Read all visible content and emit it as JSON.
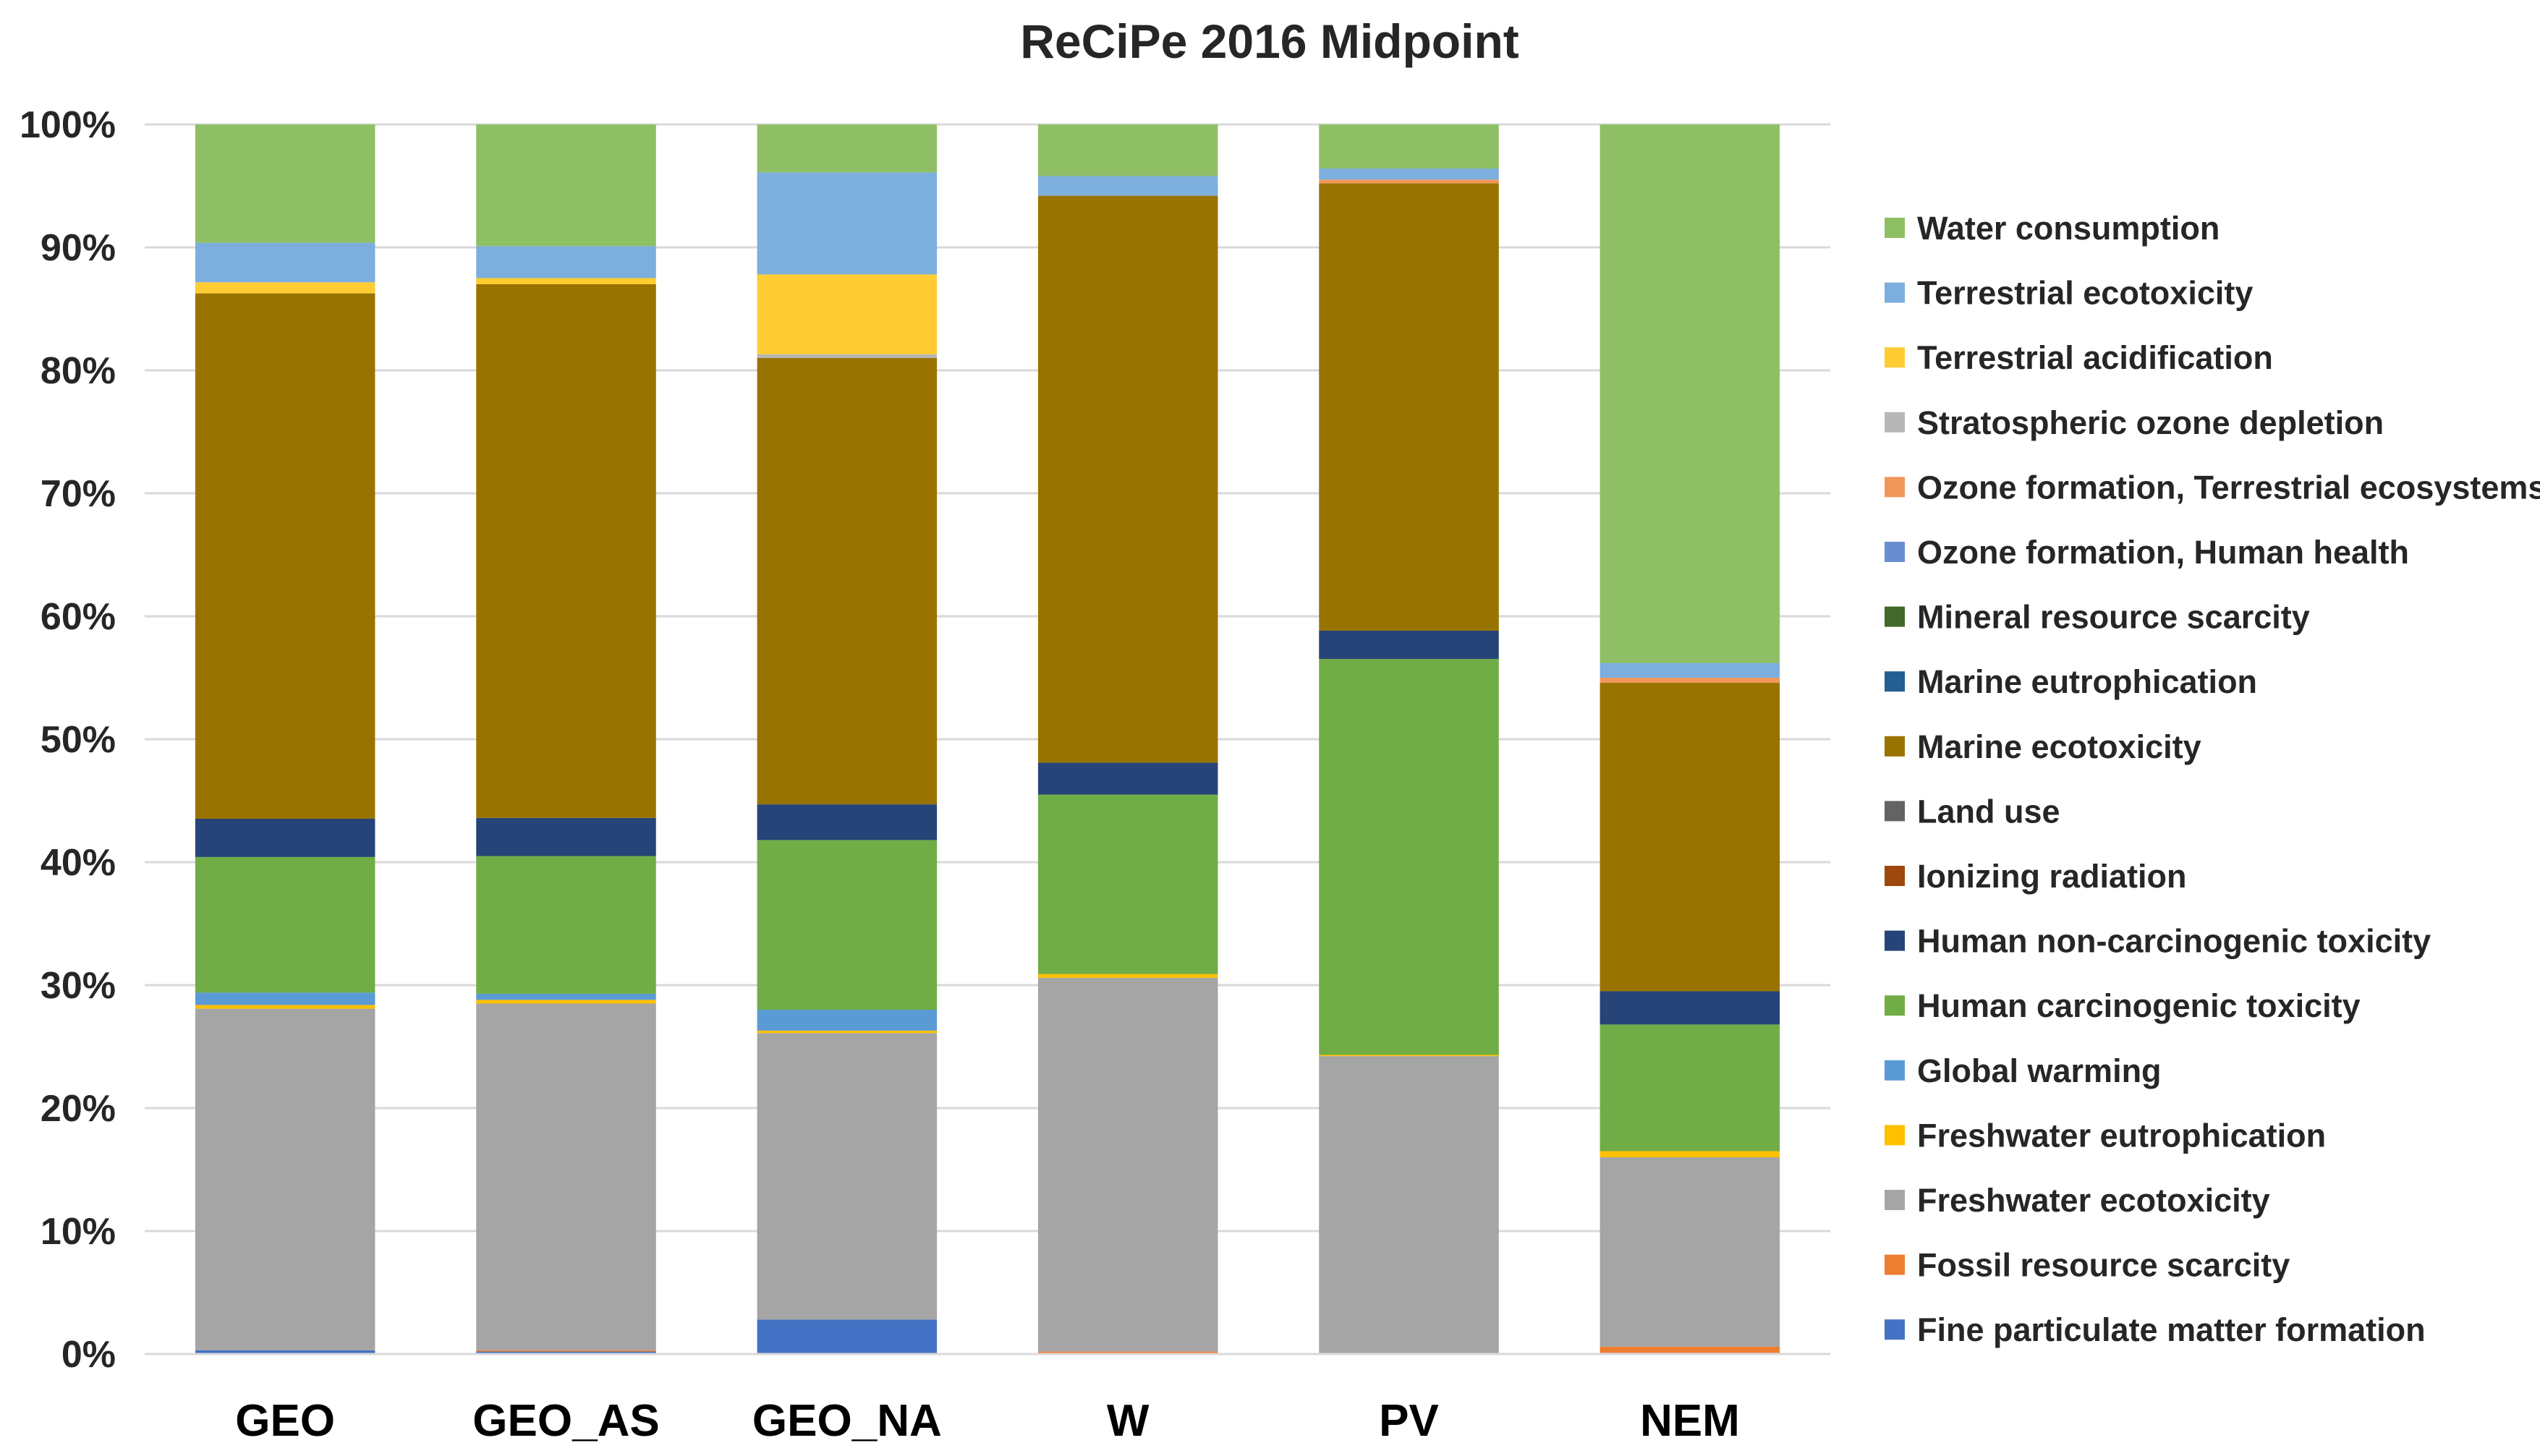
{
  "chart_data": {
    "type": "bar",
    "stacked": "percent",
    "title": "ReCiPe 2016 Midpoint",
    "xlabel": "",
    "ylabel": "",
    "ylim": [
      0,
      100
    ],
    "y_ticks": [
      "0%",
      "10%",
      "20%",
      "30%",
      "40%",
      "50%",
      "60%",
      "70%",
      "80%",
      "90%",
      "100%"
    ],
    "grid": true,
    "legend_position": "right",
    "categories": [
      "GEO",
      "GEO_AS",
      "GEO_NA",
      "W",
      "PV",
      "NEM"
    ],
    "series": [
      {
        "name": "Fine particulate matter formation",
        "color": "#4472C4",
        "values": [
          0.3,
          0.2,
          2.8,
          0.0,
          0.0,
          0.1
        ]
      },
      {
        "name": "Fossil resource scarcity",
        "color": "#ED7D31",
        "values": [
          0.0,
          0.1,
          0.0,
          0.2,
          0.0,
          0.5
        ]
      },
      {
        "name": "Freshwater ecotoxicity",
        "color": "#A5A5A5",
        "values": [
          27.7,
          28.2,
          23.3,
          30.4,
          24.3,
          15.4
        ]
      },
      {
        "name": "Freshwater eutrophication",
        "color": "#FFC000",
        "values": [
          0.3,
          0.3,
          0.2,
          0.3,
          0.1,
          0.5
        ]
      },
      {
        "name": "Global warming",
        "color": "#5B9BD5",
        "values": [
          1.0,
          0.5,
          1.7,
          0.0,
          0.0,
          0.0
        ]
      },
      {
        "name": "Human carcinogenic toxicity",
        "color": "#70AD47",
        "values": [
          11.0,
          11.2,
          13.8,
          14.6,
          32.3,
          10.3
        ]
      },
      {
        "name": "Human non-carcinogenic toxicity",
        "color": "#264478",
        "values": [
          3.1,
          3.1,
          2.9,
          2.6,
          2.3,
          2.7
        ]
      },
      {
        "name": "Ionizing radiation",
        "color": "#9E480E",
        "values": [
          0.0,
          0.0,
          0.0,
          0.0,
          0.0,
          0.0
        ]
      },
      {
        "name": "Land use",
        "color": "#636363",
        "values": [
          0.0,
          0.0,
          0.0,
          0.0,
          0.0,
          0.0
        ]
      },
      {
        "name": "Marine ecotoxicity",
        "color": "#997300",
        "values": [
          42.6,
          43.4,
          36.3,
          46.1,
          36.5,
          25.1
        ]
      },
      {
        "name": "Marine eutrophication",
        "color": "#255E91",
        "values": [
          0.0,
          0.0,
          0.0,
          0.0,
          0.0,
          0.0
        ]
      },
      {
        "name": "Mineral resource scarcity",
        "color": "#43682B",
        "values": [
          0.0,
          0.0,
          0.0,
          0.0,
          0.0,
          0.0
        ]
      },
      {
        "name": "Ozone formation, Human health",
        "color": "#698ED0",
        "values": [
          0.0,
          0.0,
          0.0,
          0.0,
          0.0,
          0.0
        ]
      },
      {
        "name": "Ozone formation, Terrestrial ecosystems",
        "color": "#F1975A",
        "values": [
          0.0,
          0.0,
          0.0,
          0.0,
          0.3,
          0.4
        ]
      },
      {
        "name": "Stratospheric ozone depletion",
        "color": "#B7B7B7",
        "values": [
          0.0,
          0.0,
          0.3,
          0.0,
          0.0,
          0.0
        ]
      },
      {
        "name": "Terrestrial acidification",
        "color": "#FFCD33",
        "values": [
          0.9,
          0.5,
          6.5,
          0.0,
          0.0,
          0.0
        ]
      },
      {
        "name": "Terrestrial ecotoxicity",
        "color": "#7CAFDD",
        "values": [
          3.2,
          2.6,
          8.3,
          1.6,
          0.9,
          1.2
        ]
      },
      {
        "name": "Water consumption",
        "color": "#8FBF64",
        "values": [
          9.6,
          9.9,
          3.9,
          4.2,
          3.6,
          43.8
        ]
      }
    ]
  }
}
